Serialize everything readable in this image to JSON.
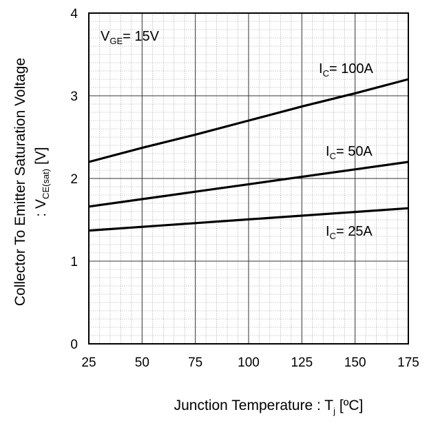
{
  "chart_data": {
    "type": "line",
    "x": [
      25,
      50,
      75,
      100,
      125,
      150,
      175
    ],
    "series": [
      {
        "name": "I_C= 100A",
        "values": [
          2.2,
          2.37,
          2.53,
          2.7,
          2.87,
          3.03,
          3.2
        ]
      },
      {
        "name": "I_C= 50A",
        "values": [
          1.66,
          1.75,
          1.84,
          1.93,
          2.02,
          2.11,
          2.2
        ]
      },
      {
        "name": "I_C= 25A",
        "values": [
          1.37,
          1.415,
          1.46,
          1.505,
          1.55,
          1.595,
          1.64
        ]
      }
    ],
    "xlim": [
      25,
      175
    ],
    "ylim": [
      0,
      4
    ],
    "x_ticks": [
      "25",
      "50",
      "75",
      "100",
      "125",
      "150",
      "175"
    ],
    "y_ticks": [
      "0",
      "1",
      "2",
      "3",
      "4"
    ],
    "grid": true,
    "xlabel": {
      "main": "Junction Temperature : T",
      "sub": "j",
      "suffix": " [ºC]"
    },
    "ylabel": {
      "line1": "Collector To Emitter Saturation Voltage",
      "line2_main": ": V",
      "line2_sub": "CE(sat)",
      "line2_suffix": " [V]"
    },
    "condition": {
      "main": "V",
      "sub": "GE",
      "suffix": "= 15V"
    },
    "curve_labels": [
      {
        "main": "I",
        "sub": "C",
        "suffix": "= 100A"
      },
      {
        "main": "I",
        "sub": "C",
        "suffix": "= 50A"
      },
      {
        "main": "I",
        "sub": "C",
        "suffix": "= 25A"
      }
    ]
  }
}
